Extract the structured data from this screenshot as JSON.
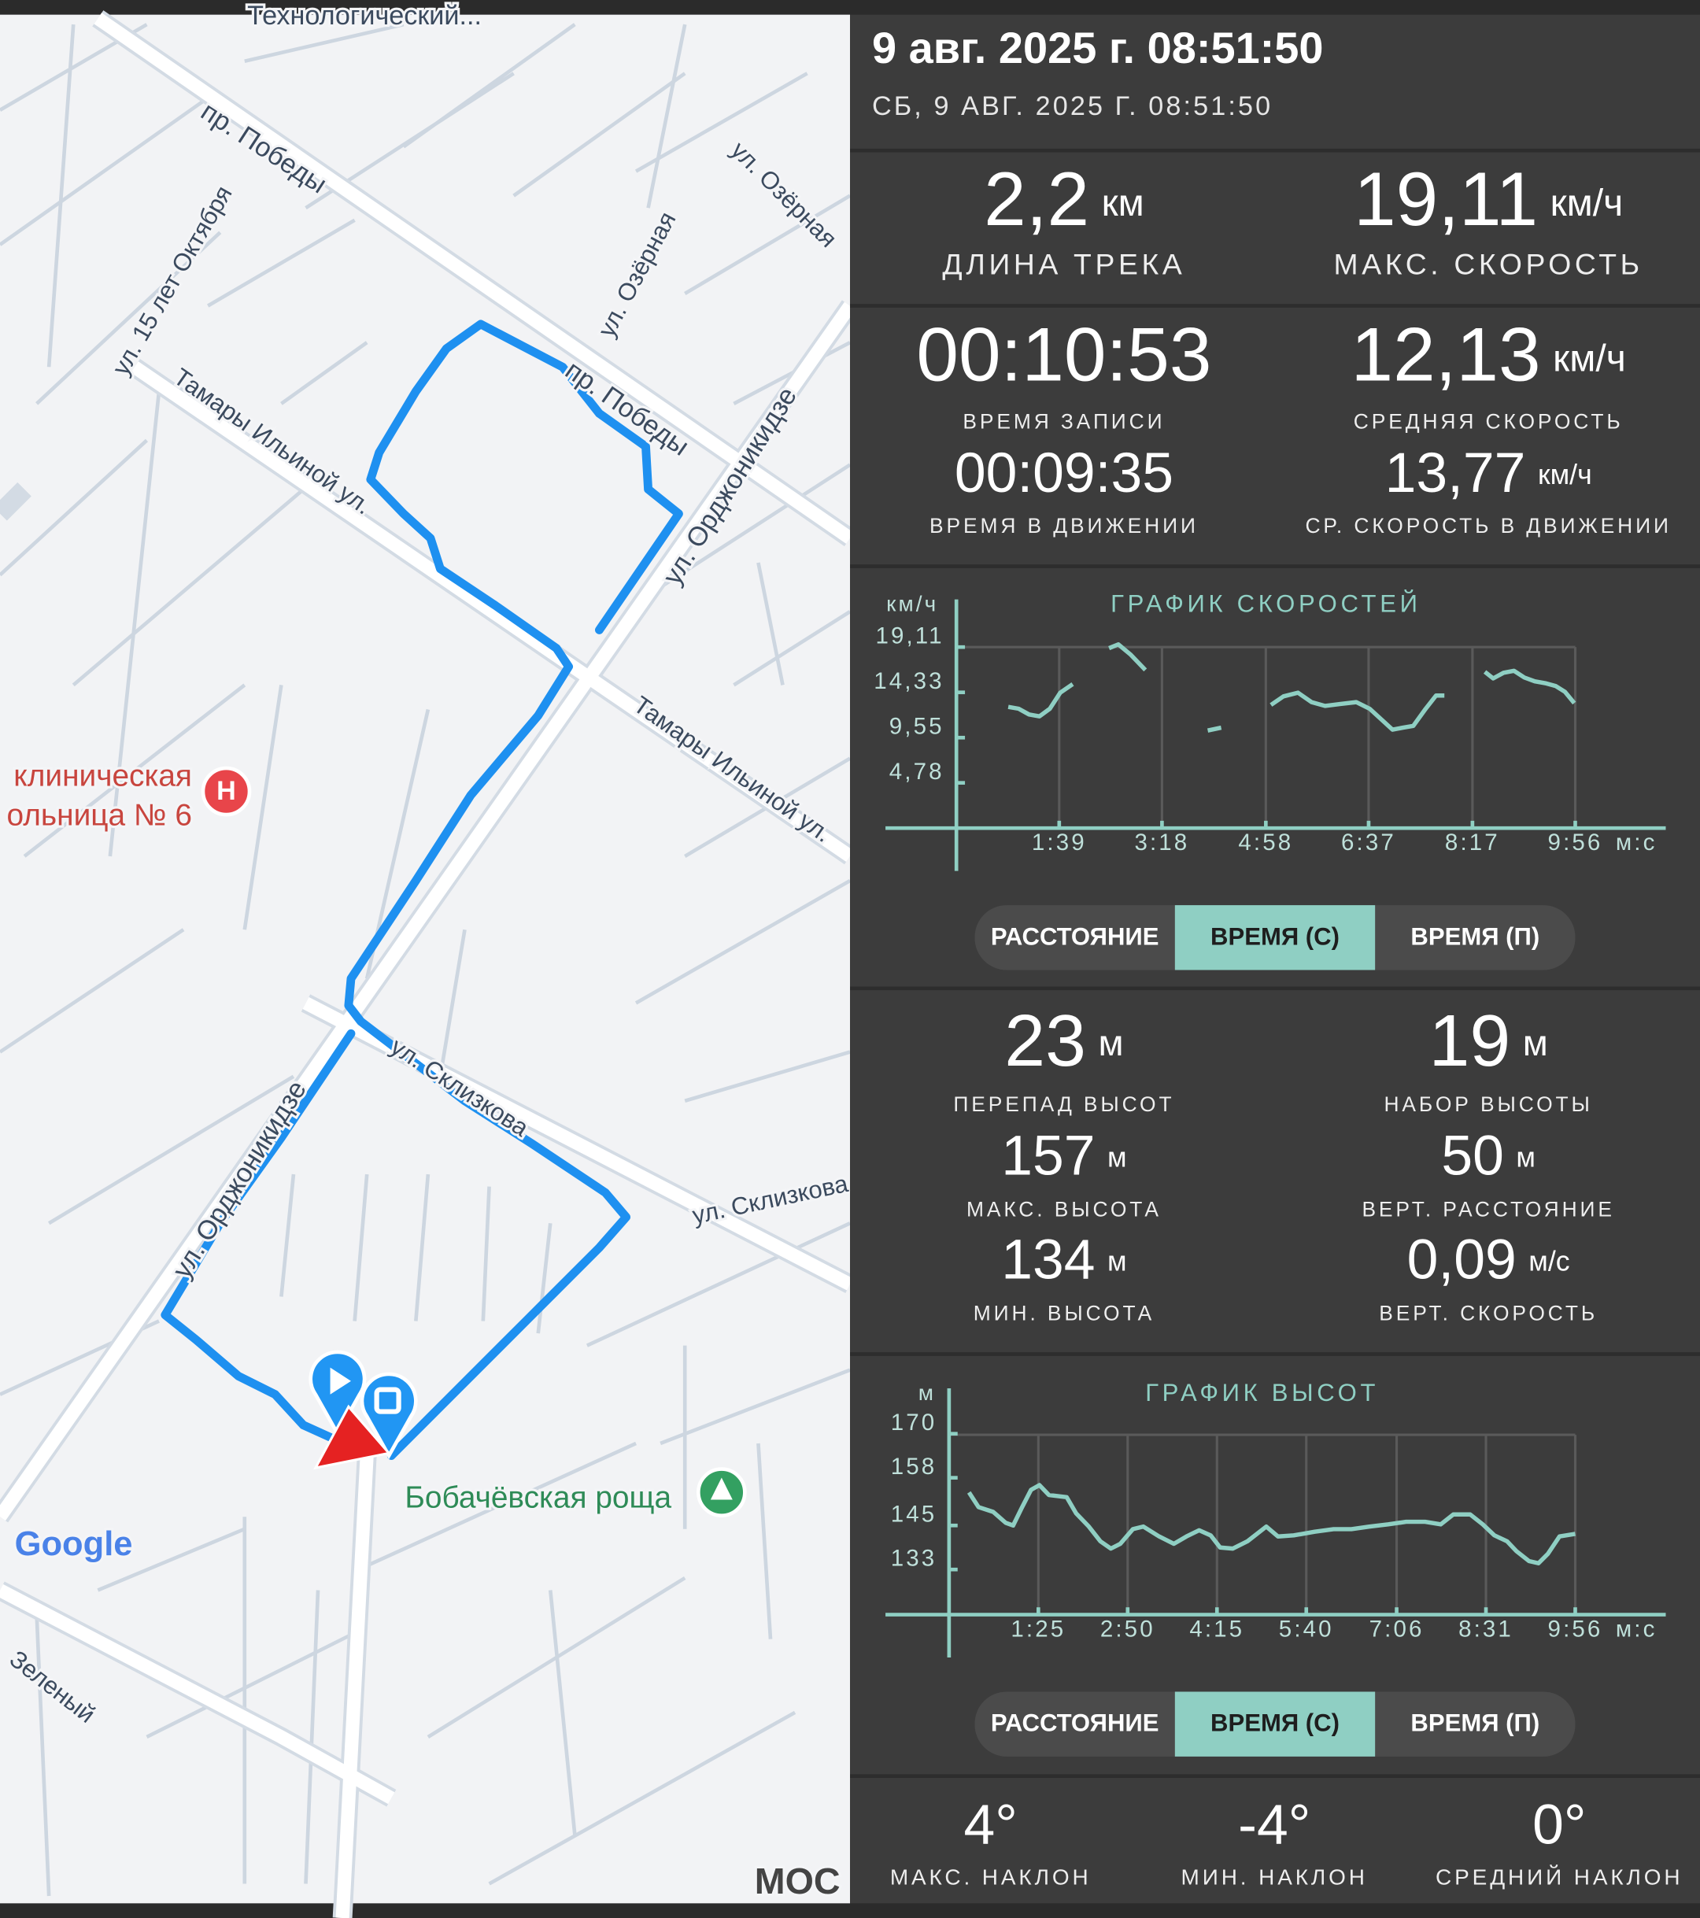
{
  "header": {
    "title": "9 авг. 2025 г. 08:51:50",
    "subtitle": "СБ, 9 АВГ. 2025 Г. 08:51:50"
  },
  "track_stats": [
    {
      "value": "2,2",
      "unit": "км",
      "label": "ДЛИНА ТРЕКА"
    },
    {
      "value": "19,11",
      "unit": "км/ч",
      "label": "МАКС. СКОРОСТЬ"
    },
    {
      "value": "00:10:53",
      "label": "ВРЕМЯ ЗАПИСИ"
    },
    {
      "value": "12,13",
      "unit": "км/ч",
      "label": "СРЕДНЯЯ СКОРОСТЬ"
    },
    {
      "value": "00:09:35",
      "label": "ВРЕМЯ В ДВИЖЕНИИ"
    },
    {
      "value": "13,77",
      "unit": "км/ч",
      "label": "СР. СКОРОСТЬ В ДВИЖЕНИИ"
    }
  ],
  "speed_chart": {
    "type": "line",
    "title": "ГРАФИК СКОРОСТЕЙ",
    "y_label": "км/ч",
    "x_label": "м:с",
    "color": "#8fcfc3",
    "grid": true,
    "x": [
      50,
      60,
      70,
      80,
      90,
      100,
      112,
      130,
      147,
      156,
      168,
      182,
      220,
      242,
      255,
      280,
      303,
      315,
      329,
      342,
      355,
      370,
      385,
      398,
      410,
      420,
      430,
      440,
      452,
      462,
      470,
      490,
      509,
      517,
      527,
      537,
      547,
      557,
      567,
      577,
      586,
      595
    ],
    "values": [
      12.8,
      12.6,
      12.0,
      11.8,
      12.6,
      14.3,
      15.2,
      null,
      19.0,
      19.4,
      18.3,
      16.7,
      null,
      10.3,
      10.6,
      null,
      13.0,
      13.9,
      14.3,
      13.3,
      12.9,
      13.1,
      13.3,
      12.6,
      11.4,
      10.4,
      10.6,
      10.8,
      12.6,
      14.0,
      14.0,
      null,
      16.5,
      15.8,
      16.4,
      16.6,
      15.9,
      15.5,
      15.3,
      15.0,
      14.4,
      13.2
    ],
    "xlim": [
      0,
      596
    ],
    "ylim": [
      0,
      23.5
    ],
    "xticks": [
      {
        "value": 99,
        "label": "1:39"
      },
      {
        "value": 198,
        "label": "3:18"
      },
      {
        "value": 298,
        "label": "4:58"
      },
      {
        "value": 397,
        "label": "6:37"
      },
      {
        "value": 497,
        "label": "8:17"
      },
      {
        "value": 596,
        "label": "9:56"
      }
    ],
    "yticks": [
      {
        "value": 4.78,
        "label": "4,78"
      },
      {
        "value": 9.55,
        "label": "9,55"
      },
      {
        "value": 14.33,
        "label": "14,33"
      },
      {
        "value": 19.11,
        "label": "19,11"
      }
    ],
    "tabs": [
      "РАССТОЯНИЕ",
      "ВРЕМЯ (С)",
      "ВРЕМЯ (П)"
    ],
    "selected_tab": 1
  },
  "elevation_stats": [
    {
      "value": "23",
      "unit": "м",
      "label": "ПЕРЕПАД ВЫСОТ"
    },
    {
      "value": "19",
      "unit": "м",
      "label": "НАБОР ВЫСОТЫ"
    },
    {
      "value": "157",
      "unit": "м",
      "label": "МАКС. ВЫСОТА"
    },
    {
      "value": "50",
      "unit": "м",
      "label": "ВЕРТ. РАССТОЯНИЕ"
    },
    {
      "value": "134",
      "unit": "м",
      "label": "МИН. ВЫСОТА"
    },
    {
      "value": "0,09",
      "unit": "м/с",
      "label": "ВЕРТ. СКОРОСТЬ"
    }
  ],
  "elevation_chart": {
    "type": "line",
    "title": "ГРАФИК ВЫСОТ",
    "y_label": "м",
    "x_label": "м:с",
    "color": "#8fcfc3",
    "grid": true,
    "x": [
      19,
      28,
      42,
      54,
      61,
      69,
      78,
      86,
      95,
      112,
      121,
      133,
      144,
      154,
      163,
      175,
      185,
      200,
      214,
      226,
      238,
      249,
      258,
      270,
      284,
      302,
      313,
      328,
      348,
      366,
      383,
      400,
      418,
      435,
      453,
      468,
      480,
      496,
      508,
      519,
      531,
      540,
      552,
      561,
      570,
      581,
      596
    ],
    "values": [
      154,
      150,
      148.7,
      145.7,
      145,
      149.7,
      154.7,
      156,
      153.3,
      152.7,
      148.3,
      144.7,
      140.7,
      138.7,
      140,
      144,
      144.7,
      142,
      140,
      142,
      143.7,
      142.3,
      139,
      138.7,
      140.7,
      144.7,
      142,
      142.3,
      143.3,
      144,
      144,
      144.7,
      145.3,
      146,
      146,
      145.3,
      148,
      148,
      145.3,
      142.3,
      140.7,
      138,
      135.3,
      134.7,
      137.3,
      142,
      142.7
    ],
    "xlim": [
      0,
      596
    ],
    "ylim": [
      120.7,
      180.7
    ],
    "xticks": [
      {
        "value": 85,
        "label": "1:25"
      },
      {
        "value": 170,
        "label": "2:50"
      },
      {
        "value": 255,
        "label": "4:15"
      },
      {
        "value": 340,
        "label": "5:40"
      },
      {
        "value": 426,
        "label": "7:06"
      },
      {
        "value": 511,
        "label": "8:31"
      },
      {
        "value": 596,
        "label": "9:56"
      }
    ],
    "yticks": [
      133,
      145,
      158,
      170
    ],
    "tabs": [
      "РАССТОЯНИЕ",
      "ВРЕМЯ (С)",
      "ВРЕМЯ (П)"
    ],
    "selected_tab": 1
  },
  "slope_stats": [
    {
      "value": "4°",
      "label": "МАКС. НАКЛОН"
    },
    {
      "value": "-4°",
      "label": "МИН. НАКЛОН"
    },
    {
      "value": "0°",
      "label": "СРЕДНИЙ НАКЛОН"
    }
  ],
  "map": {
    "labels": [
      "Технологический...",
      "пр. Победы",
      "ул. 15 лет Октября",
      "ул. Озёрная",
      "ул. Озёрная",
      "Тамары Ильиной ул.",
      "пр. Победы",
      "ул. Орджоникидзе",
      "Тамары Ильиной ул.",
      "клиническая",
      "ольница № 6",
      "Н",
      "ул. Склизкова",
      "ул. Склизкова",
      "ул. Орджоникидзе",
      "Бобачёвская роща",
      "Google",
      "Зеленый",
      "МОС"
    ]
  }
}
